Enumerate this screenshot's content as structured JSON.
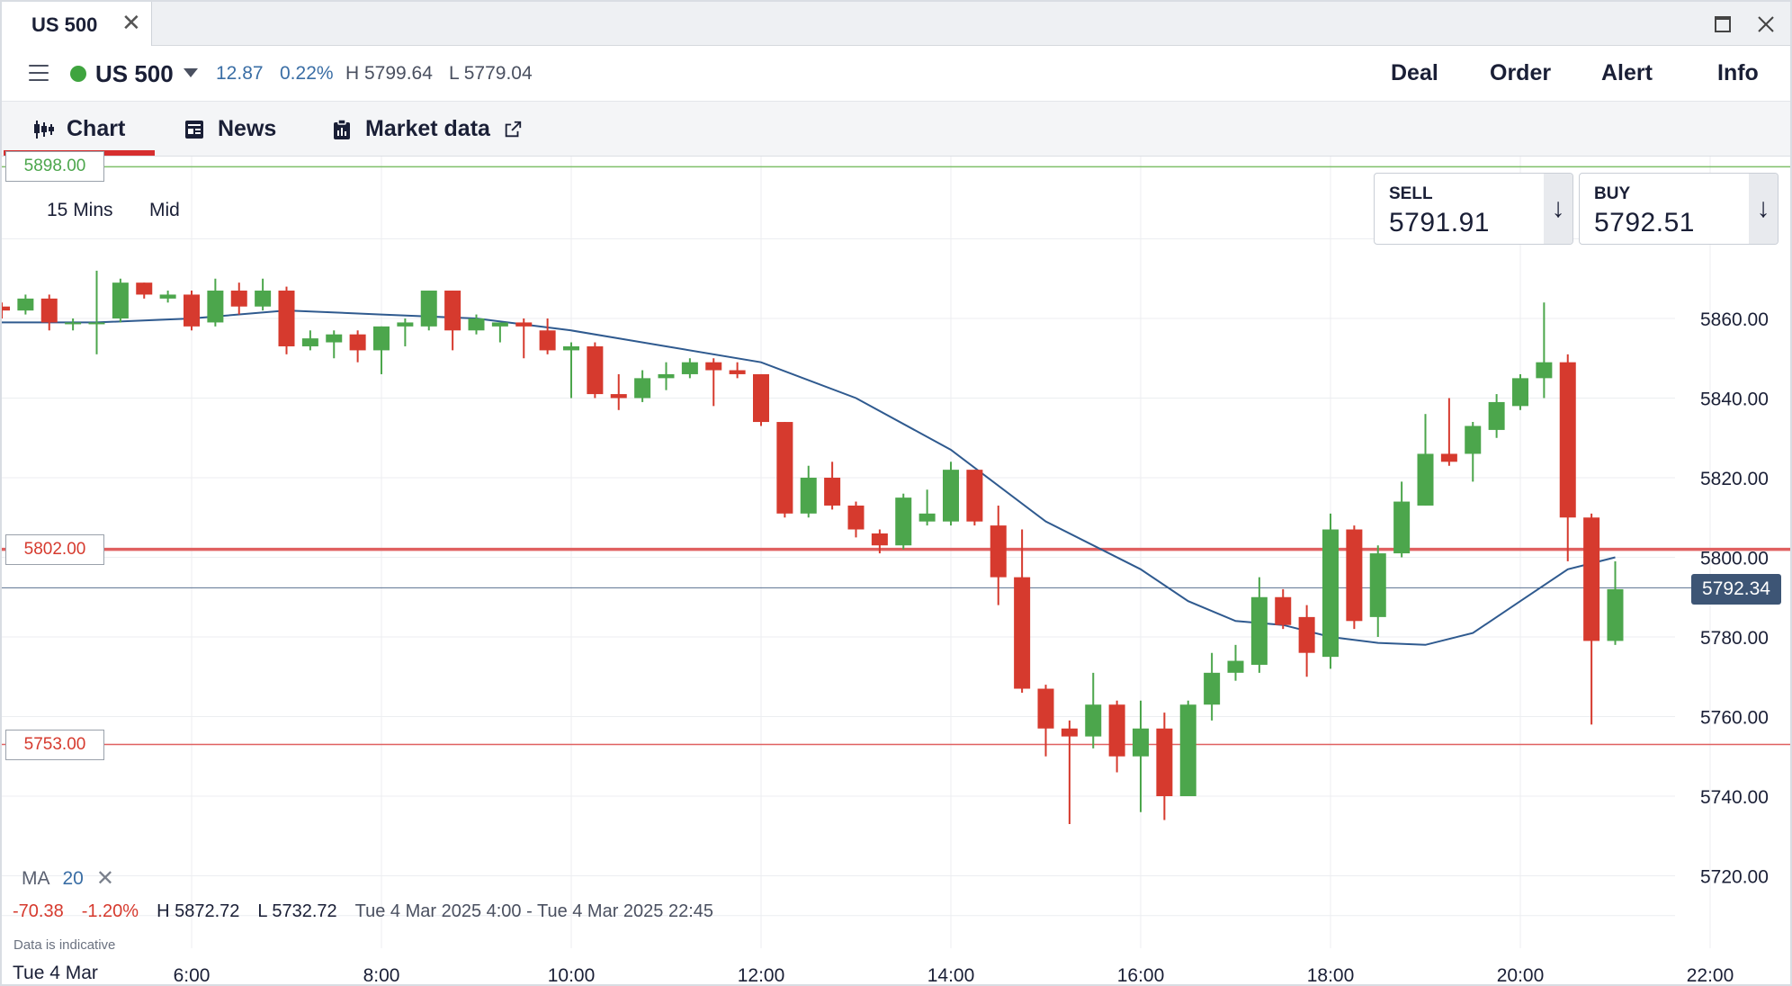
{
  "window": {
    "tab_label": "US 500",
    "close_glyph": "✕",
    "maximize_icon": "maximize-icon",
    "close_icon": "close-icon"
  },
  "instrument": {
    "name": "US 500",
    "status_color": "#3fa43f",
    "change": "12.87",
    "change_pct": "0.22%",
    "high": "H 5799.64",
    "low": "L 5779.04",
    "actions": [
      "Deal",
      "Order",
      "Alert",
      "Info"
    ]
  },
  "tabs": [
    {
      "label": "Chart",
      "icon": "candlestick-icon",
      "active": true
    },
    {
      "label": "News",
      "icon": "news-icon",
      "active": false
    },
    {
      "label": "Market data",
      "icon": "clipboard-icon",
      "active": false,
      "external_icon": "external-link-icon"
    }
  ],
  "chart_controls": {
    "interval": "15 Mins",
    "price_type": "Mid"
  },
  "deal": {
    "sell_label": "SELL",
    "sell_price": "5791.91",
    "buy_label": "BUY",
    "buy_price": "5792.51",
    "arrow": "↓"
  },
  "levels": {
    "top": "5898.00",
    "mid": "5802.00",
    "low": "5753.00",
    "current": "5792.34"
  },
  "indicator": {
    "name": "MA",
    "period": "20",
    "remove_glyph": "✕"
  },
  "stats": {
    "change": "-70.38",
    "change_pct": "-1.20%",
    "high": "H 5872.72",
    "low": "L 5732.72",
    "range": "Tue 4 Mar 2025 4:00 - Tue 4 Mar 2025 22:45"
  },
  "disclaimer": "Data is indicative",
  "date_label": "Tue 4 Mar",
  "colors": {
    "up": "#4ca64c",
    "down": "#d63a2e",
    "ma_line": "#2f5a8f",
    "accent": "#d62e2e"
  },
  "chart_data": {
    "type": "candlestick",
    "instrument": "US 500",
    "interval": "15 Mins",
    "x_ticks": [
      "6:00",
      "8:00",
      "10:00",
      "12:00",
      "14:00",
      "16:00",
      "18:00",
      "20:00",
      "22:00"
    ],
    "y_ticks": [
      "5720.00",
      "5740.00",
      "5760.00",
      "5780.00",
      "5800.00",
      "5820.00",
      "5840.00",
      "5860.00"
    ],
    "ylim": [
      5712,
      5902
    ],
    "candles_time_start": "4:00",
    "candles": [
      {
        "t": "4:00",
        "o": 5863,
        "c": 5862,
        "h": 5864,
        "l": 5860
      },
      {
        "t": "4:15",
        "o": 5862,
        "c": 5865,
        "h": 5866,
        "l": 5861
      },
      {
        "t": "4:30",
        "o": 5865,
        "c": 5859,
        "h": 5866,
        "l": 5857
      },
      {
        "t": "4:45",
        "o": 5859,
        "c": 5859,
        "h": 5860,
        "l": 5857
      },
      {
        "t": "5:00",
        "o": 5859,
        "c": 5859,
        "h": 5872,
        "l": 5851
      },
      {
        "t": "5:15",
        "o": 5860,
        "c": 5869,
        "h": 5870,
        "l": 5859
      },
      {
        "t": "5:30",
        "o": 5869,
        "c": 5866,
        "h": 5869,
        "l": 5865
      },
      {
        "t": "5:45",
        "o": 5865,
        "c": 5866,
        "h": 5867,
        "l": 5864
      },
      {
        "t": "6:00",
        "o": 5866,
        "c": 5858,
        "h": 5867,
        "l": 5857
      },
      {
        "t": "6:15",
        "o": 5859,
        "c": 5867,
        "h": 5870,
        "l": 5858
      },
      {
        "t": "6:30",
        "o": 5867,
        "c": 5863,
        "h": 5869,
        "l": 5861
      },
      {
        "t": "6:45",
        "o": 5863,
        "c": 5867,
        "h": 5870,
        "l": 5862
      },
      {
        "t": "7:00",
        "o": 5867,
        "c": 5853,
        "h": 5868,
        "l": 5851
      },
      {
        "t": "7:15",
        "o": 5853,
        "c": 5855,
        "h": 5857,
        "l": 5852
      },
      {
        "t": "7:30",
        "o": 5854,
        "c": 5856,
        "h": 5857,
        "l": 5850
      },
      {
        "t": "7:45",
        "o": 5856,
        "c": 5852,
        "h": 5857,
        "l": 5849
      },
      {
        "t": "8:00",
        "o": 5852,
        "c": 5858,
        "h": 5858,
        "l": 5846
      },
      {
        "t": "8:15",
        "o": 5858,
        "c": 5859,
        "h": 5860,
        "l": 5853
      },
      {
        "t": "8:30",
        "o": 5858,
        "c": 5867,
        "h": 5867,
        "l": 5857
      },
      {
        "t": "8:45",
        "o": 5867,
        "c": 5857,
        "h": 5867,
        "l": 5852
      },
      {
        "t": "9:00",
        "o": 5857,
        "c": 5860,
        "h": 5861,
        "l": 5856
      },
      {
        "t": "9:15",
        "o": 5858,
        "c": 5859,
        "h": 5859,
        "l": 5854
      },
      {
        "t": "9:30",
        "o": 5859,
        "c": 5858,
        "h": 5860,
        "l": 5850
      },
      {
        "t": "9:45",
        "o": 5857,
        "c": 5852,
        "h": 5860,
        "l": 5851
      },
      {
        "t": "10:00",
        "o": 5852,
        "c": 5853,
        "h": 5854,
        "l": 5840
      },
      {
        "t": "10:15",
        "o": 5853,
        "c": 5841,
        "h": 5854,
        "l": 5840
      },
      {
        "t": "10:30",
        "o": 5841,
        "c": 5840,
        "h": 5846,
        "l": 5837
      },
      {
        "t": "10:45",
        "o": 5840,
        "c": 5845,
        "h": 5847,
        "l": 5839
      },
      {
        "t": "11:00",
        "o": 5845,
        "c": 5846,
        "h": 5849,
        "l": 5842
      },
      {
        "t": "11:15",
        "o": 5846,
        "c": 5849,
        "h": 5850,
        "l": 5845
      },
      {
        "t": "11:30",
        "o": 5849,
        "c": 5847,
        "h": 5850,
        "l": 5838
      },
      {
        "t": "11:45",
        "o": 5847,
        "c": 5846,
        "h": 5849,
        "l": 5845
      },
      {
        "t": "12:00",
        "o": 5846,
        "c": 5834,
        "h": 5846,
        "l": 5833
      },
      {
        "t": "12:15",
        "o": 5834,
        "c": 5811,
        "h": 5834,
        "l": 5810
      },
      {
        "t": "12:30",
        "o": 5811,
        "c": 5820,
        "h": 5823,
        "l": 5810
      },
      {
        "t": "12:45",
        "o": 5820,
        "c": 5813,
        "h": 5824,
        "l": 5812
      },
      {
        "t": "13:00",
        "o": 5813,
        "c": 5807,
        "h": 5814,
        "l": 5805
      },
      {
        "t": "13:15",
        "o": 5806,
        "c": 5803,
        "h": 5807,
        "l": 5801
      },
      {
        "t": "13:30",
        "o": 5803,
        "c": 5815,
        "h": 5816,
        "l": 5802
      },
      {
        "t": "13:45",
        "o": 5809,
        "c": 5811,
        "h": 5817,
        "l": 5808
      },
      {
        "t": "14:00",
        "o": 5809,
        "c": 5822,
        "h": 5824,
        "l": 5808
      },
      {
        "t": "14:15",
        "o": 5822,
        "c": 5809,
        "h": 5822,
        "l": 5808
      },
      {
        "t": "14:30",
        "o": 5808,
        "c": 5795,
        "h": 5813,
        "l": 5788
      },
      {
        "t": "14:45",
        "o": 5795,
        "c": 5767,
        "h": 5807,
        "l": 5766
      },
      {
        "t": "15:00",
        "o": 5767,
        "c": 5757,
        "h": 5768,
        "l": 5750
      },
      {
        "t": "15:15",
        "o": 5757,
        "c": 5755,
        "h": 5759,
        "l": 5733
      },
      {
        "t": "15:30",
        "o": 5755,
        "c": 5763,
        "h": 5771,
        "l": 5752
      },
      {
        "t": "15:45",
        "o": 5763,
        "c": 5750,
        "h": 5764,
        "l": 5746
      },
      {
        "t": "16:00",
        "o": 5750,
        "c": 5757,
        "h": 5764,
        "l": 5736
      },
      {
        "t": "16:15",
        "o": 5757,
        "c": 5740,
        "h": 5761,
        "l": 5734
      },
      {
        "t": "16:30",
        "o": 5740,
        "c": 5763,
        "h": 5764,
        "l": 5740
      },
      {
        "t": "16:45",
        "o": 5763,
        "c": 5771,
        "h": 5776,
        "l": 5759
      },
      {
        "t": "17:00",
        "o": 5771,
        "c": 5774,
        "h": 5778,
        "l": 5769
      },
      {
        "t": "17:15",
        "o": 5773,
        "c": 5790,
        "h": 5795,
        "l": 5771
      },
      {
        "t": "17:30",
        "o": 5790,
        "c": 5783,
        "h": 5792,
        "l": 5782
      },
      {
        "t": "17:45",
        "o": 5785,
        "c": 5776,
        "h": 5788,
        "l": 5770
      },
      {
        "t": "18:00",
        "o": 5775,
        "c": 5807,
        "h": 5811,
        "l": 5772
      },
      {
        "t": "18:15",
        "o": 5807,
        "c": 5784,
        "h": 5808,
        "l": 5782
      },
      {
        "t": "18:30",
        "o": 5785,
        "c": 5801,
        "h": 5803,
        "l": 5780
      },
      {
        "t": "18:45",
        "o": 5801,
        "c": 5814,
        "h": 5819,
        "l": 5800
      },
      {
        "t": "19:00",
        "o": 5813,
        "c": 5826,
        "h": 5836,
        "l": 5813
      },
      {
        "t": "19:15",
        "o": 5826,
        "c": 5824,
        "h": 5840,
        "l": 5823
      },
      {
        "t": "19:30",
        "o": 5826,
        "c": 5833,
        "h": 5834,
        "l": 5819
      },
      {
        "t": "19:45",
        "o": 5832,
        "c": 5839,
        "h": 5841,
        "l": 5830
      },
      {
        "t": "20:00",
        "o": 5838,
        "c": 5845,
        "h": 5846,
        "l": 5837
      },
      {
        "t": "20:15",
        "o": 5845,
        "c": 5849,
        "h": 5864,
        "l": 5840
      },
      {
        "t": "20:30",
        "o": 5849,
        "c": 5810,
        "h": 5851,
        "l": 5799
      },
      {
        "t": "20:45",
        "o": 5810,
        "c": 5779,
        "h": 5811,
        "l": 5758
      },
      {
        "t": "21:00",
        "o": 5779,
        "c": 5792,
        "h": 5799,
        "l": 5778
      }
    ],
    "ma": {
      "name": "MA 20",
      "points": [
        {
          "t": "4:00",
          "v": 5859
        },
        {
          "t": "5:00",
          "v": 5859
        },
        {
          "t": "6:00",
          "v": 5860
        },
        {
          "t": "7:00",
          "v": 5862
        },
        {
          "t": "8:00",
          "v": 5861
        },
        {
          "t": "9:00",
          "v": 5860
        },
        {
          "t": "10:00",
          "v": 5857
        },
        {
          "t": "11:00",
          "v": 5853
        },
        {
          "t": "12:00",
          "v": 5849
        },
        {
          "t": "13:00",
          "v": 5840
        },
        {
          "t": "14:00",
          "v": 5827
        },
        {
          "t": "15:00",
          "v": 5809
        },
        {
          "t": "16:00",
          "v": 5797
        },
        {
          "t": "16:30",
          "v": 5789
        },
        {
          "t": "17:00",
          "v": 5784
        },
        {
          "t": "17:30",
          "v": 5783
        },
        {
          "t": "18:00",
          "v": 5780
        },
        {
          "t": "18:30",
          "v": 5778.5
        },
        {
          "t": "19:00",
          "v": 5778
        },
        {
          "t": "19:30",
          "v": 5781
        },
        {
          "t": "20:00",
          "v": 5789
        },
        {
          "t": "20:30",
          "v": 5797
        },
        {
          "t": "21:00",
          "v": 5800
        }
      ]
    }
  }
}
